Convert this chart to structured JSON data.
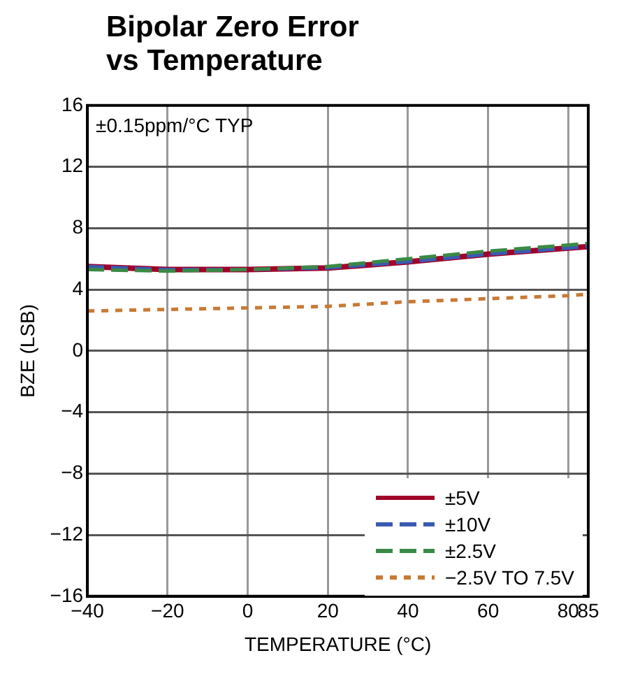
{
  "chart_data": {
    "type": "line",
    "title": "Bipolar Zero Error vs Temperature",
    "xlabel": "TEMPERATURE (°C)",
    "ylabel": "BZE (LSB)",
    "annotations": [
      "±0.15ppm/°C TYP"
    ],
    "x": [
      -40,
      -20,
      0,
      20,
      40,
      60,
      80,
      85
    ],
    "series": [
      {
        "name": "±5V",
        "color": "#a0002a",
        "line_style": "solid",
        "values": [
          5.5,
          5.3,
          5.3,
          5.4,
          5.8,
          6.3,
          6.7,
          6.8
        ]
      },
      {
        "name": "±10V",
        "color": "#3a5bb0",
        "line_style": "dashed",
        "values": [
          5.5,
          5.3,
          5.3,
          5.4,
          5.8,
          6.3,
          6.7,
          6.8
        ]
      },
      {
        "name": "±2.5V",
        "color": "#3a8a45",
        "line_style": "dashed",
        "values": [
          5.3,
          5.2,
          5.3,
          5.5,
          6.0,
          6.5,
          6.9,
          7.0
        ]
      },
      {
        "name": "−2.5V TO 7.5V",
        "color": "#c87a35",
        "line_style": "dotted",
        "values": [
          2.6,
          2.7,
          2.8,
          2.9,
          3.2,
          3.4,
          3.6,
          3.7
        ]
      }
    ],
    "xlim": [
      -40,
      85
    ],
    "xticks": [
      {
        "value": -40,
        "label": "−40"
      },
      {
        "value": -20,
        "label": "−20"
      },
      0,
      20,
      40,
      60,
      80,
      85
    ],
    "ylim": [
      -16,
      16
    ],
    "yticks": [
      {
        "value": -16,
        "label": "−16"
      },
      {
        "value": -12,
        "label": "−12"
      },
      {
        "value": -8,
        "label": "−8"
      },
      {
        "value": -4,
        "label": "−4"
      },
      0,
      4,
      8,
      12,
      16
    ],
    "grid": true,
    "legend": "bottom right",
    "marker": "none"
  }
}
